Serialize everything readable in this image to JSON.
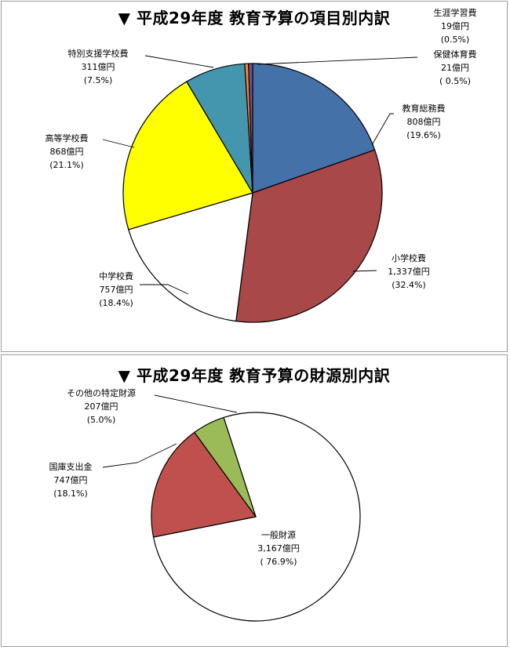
{
  "chart_data": [
    {
      "type": "pie",
      "title": "▼ 平成29年度 教育予算の項目別内訳",
      "unit": "億円",
      "slices": [
        {
          "label": "教育総務費",
          "value": 808,
          "value_text": "808億円",
          "percent_text": "(19.6%)",
          "color": "#4472a8"
        },
        {
          "label": "小学校費",
          "value": 1337,
          "value_text": "1,337億円",
          "percent_text": "(32.4%)",
          "color": "#a84848"
        },
        {
          "label": "中学校費",
          "value": 757,
          "value_text": "757億円",
          "percent_text": "(18.4%)",
          "color": "#ffffff"
        },
        {
          "label": "高等学校費",
          "value": 868,
          "value_text": "868億円",
          "percent_text": "(21.1%)",
          "color": "#ffff00"
        },
        {
          "label": "特別支援学校費",
          "value": 311,
          "value_text": "311億円",
          "percent_text": "(7.5%)",
          "color": "#4496ae"
        },
        {
          "label": "生涯学習費",
          "value": 19,
          "value_text": "19億円",
          "percent_text": "(0.5%)",
          "color": "#f08a33"
        },
        {
          "label": "保健体育費",
          "value": 21,
          "value_text": "21億円",
          "percent_text": "( 0.5%)",
          "color": "#6f5390"
        }
      ]
    },
    {
      "type": "pie",
      "title": "▼ 平成29年度 教育予算の財源別内訳",
      "unit": "億円",
      "slices": [
        {
          "label": "一般財源",
          "value": 3167,
          "value_text": "3,167億円",
          "percent_text": "( 76.9%)",
          "color": "#ffffff"
        },
        {
          "label": "国庫支出金",
          "value": 747,
          "value_text": "747億円",
          "percent_text": "(18.1%)",
          "color": "#c0504d"
        },
        {
          "label": "その他の特定財源",
          "value": 207,
          "value_text": "207億円",
          "percent_text": "(5.0%)",
          "color": "#9bbb59"
        }
      ]
    }
  ]
}
